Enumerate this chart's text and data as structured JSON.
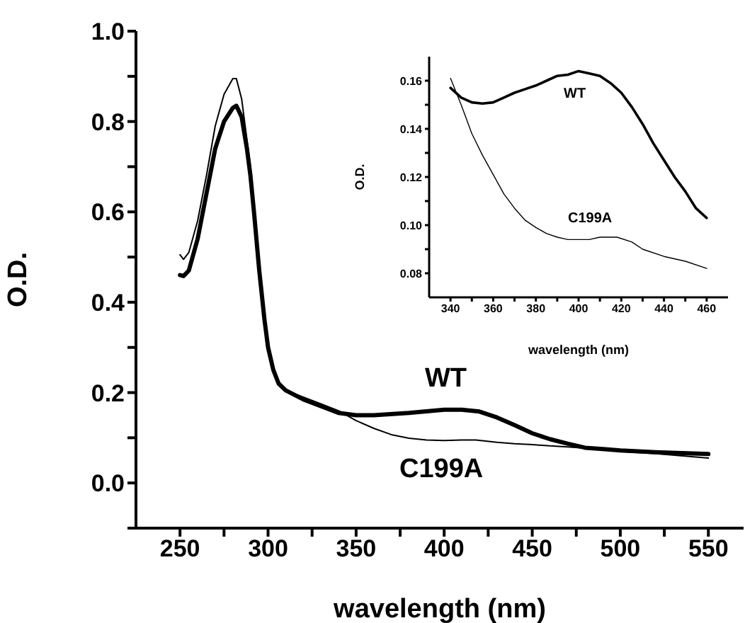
{
  "chart_data": [
    {
      "type": "line",
      "xlabel": "wavelength (nm)",
      "ylabel": "O.D.",
      "xlim": [
        225,
        570
      ],
      "ylim": [
        -0.1,
        1.0
      ],
      "xticks": [
        250,
        {
          "value": 275,
          "label": null
        },
        300,
        {
          "value": 325,
          "label": null
        },
        350,
        {
          "value": 375,
          "label": null
        },
        400,
        {
          "value": 425,
          "label": null
        },
        450,
        {
          "value": 475,
          "label": null
        },
        500,
        {
          "value": 525,
          "label": null
        },
        550
      ],
      "yticks": [
        {
          "value": -0.1,
          "label": null
        },
        {
          "value": 0,
          "label": "0.0"
        },
        {
          "value": 0.1,
          "label": null
        },
        0.2,
        {
          "value": 0.3,
          "label": null
        },
        0.4,
        {
          "value": 0.5,
          "label": null
        },
        0.6,
        {
          "value": 0.7,
          "label": null
        },
        0.8,
        {
          "value": 0.9,
          "label": null
        },
        {
          "value": 1,
          "label": "1.0"
        }
      ],
      "grid": false,
      "marker": "none",
      "line_style": "solid",
      "series": [
        {
          "name": "WT",
          "color": "#000000",
          "x": [
            250,
            252,
            255,
            260,
            265,
            270,
            275,
            280,
            282,
            285,
            288,
            290,
            292,
            295,
            298,
            300,
            303,
            306,
            310,
            320,
            330,
            340,
            350,
            360,
            380,
            400,
            410,
            420,
            430,
            440,
            450,
            460,
            470,
            480,
            490,
            500,
            520,
            550
          ],
          "values": [
            0.46,
            0.458,
            0.47,
            0.54,
            0.64,
            0.74,
            0.8,
            0.83,
            0.835,
            0.81,
            0.74,
            0.68,
            0.6,
            0.47,
            0.36,
            0.3,
            0.25,
            0.22,
            0.205,
            0.185,
            0.17,
            0.155,
            0.15,
            0.15,
            0.155,
            0.162,
            0.162,
            0.158,
            0.145,
            0.128,
            0.11,
            0.097,
            0.087,
            0.078,
            0.075,
            0.072,
            0.068,
            0.064
          ]
        },
        {
          "name": "C199A",
          "color": "#000000",
          "x": [
            250,
            252,
            255,
            260,
            265,
            270,
            275,
            280,
            282,
            285,
            288,
            290,
            292,
            295,
            298,
            300,
            303,
            306,
            310,
            320,
            330,
            340,
            350,
            360,
            370,
            380,
            390,
            400,
            410,
            418,
            430,
            440,
            450,
            460,
            470,
            480,
            490,
            500,
            520,
            550
          ],
          "values": [
            0.505,
            0.495,
            0.51,
            0.58,
            0.68,
            0.79,
            0.86,
            0.895,
            0.895,
            0.85,
            0.76,
            0.7,
            0.61,
            0.47,
            0.37,
            0.3,
            0.25,
            0.22,
            0.205,
            0.19,
            0.175,
            0.16,
            0.138,
            0.121,
            0.107,
            0.099,
            0.095,
            0.094,
            0.095,
            0.095,
            0.09,
            0.087,
            0.085,
            0.082,
            0.08,
            0.077,
            0.073,
            0.07,
            0.065,
            0.055
          ]
        }
      ]
    },
    {
      "type": "line",
      "xlabel": "wavelength (nm)",
      "ylabel": "O.D.",
      "xlim": [
        330,
        470
      ],
      "ylim": [
        0.07,
        0.17
      ],
      "xticks": [
        340,
        {
          "value": 350,
          "label": null
        },
        360,
        {
          "value": 370,
          "label": null
        },
        380,
        {
          "value": 390,
          "label": null
        },
        400,
        {
          "value": 410,
          "label": null
        },
        420,
        {
          "value": 430,
          "label": null
        },
        440,
        {
          "value": 450,
          "label": null
        },
        460
      ],
      "yticks": [
        0.08,
        {
          "value": 0.09,
          "label": null
        },
        {
          "value": 0.1,
          "label": "0.10"
        },
        {
          "value": 0.11,
          "label": null
        },
        0.12,
        {
          "value": 0.13,
          "label": null
        },
        0.14,
        {
          "value": 0.15,
          "label": null
        },
        0.16
      ],
      "grid": false,
      "marker": "none",
      "line_style": "solid",
      "series": [
        {
          "name": "WT",
          "color": "#000000",
          "x": [
            340,
            345,
            350,
            355,
            360,
            365,
            370,
            375,
            380,
            385,
            390,
            395,
            400,
            405,
            410,
            415,
            420,
            425,
            430,
            435,
            440,
            445,
            450,
            455,
            460
          ],
          "values": [
            0.157,
            0.153,
            0.151,
            0.1505,
            0.151,
            0.153,
            0.155,
            0.1565,
            0.158,
            0.16,
            0.162,
            0.1625,
            0.164,
            0.163,
            0.162,
            0.159,
            0.155,
            0.149,
            0.142,
            0.134,
            0.127,
            0.12,
            0.114,
            0.107,
            0.103
          ]
        },
        {
          "name": "C199A",
          "color": "#000000",
          "x": [
            340,
            345,
            350,
            355,
            360,
            365,
            370,
            375,
            380,
            385,
            390,
            395,
            400,
            405,
            410,
            418,
            425,
            430,
            440,
            450,
            460
          ],
          "values": [
            0.161,
            0.15,
            0.138,
            0.129,
            0.121,
            0.113,
            0.107,
            0.102,
            0.099,
            0.0965,
            0.095,
            0.094,
            0.094,
            0.094,
            0.095,
            0.095,
            0.093,
            0.09,
            0.087,
            0.085,
            0.082
          ]
        }
      ]
    }
  ]
}
